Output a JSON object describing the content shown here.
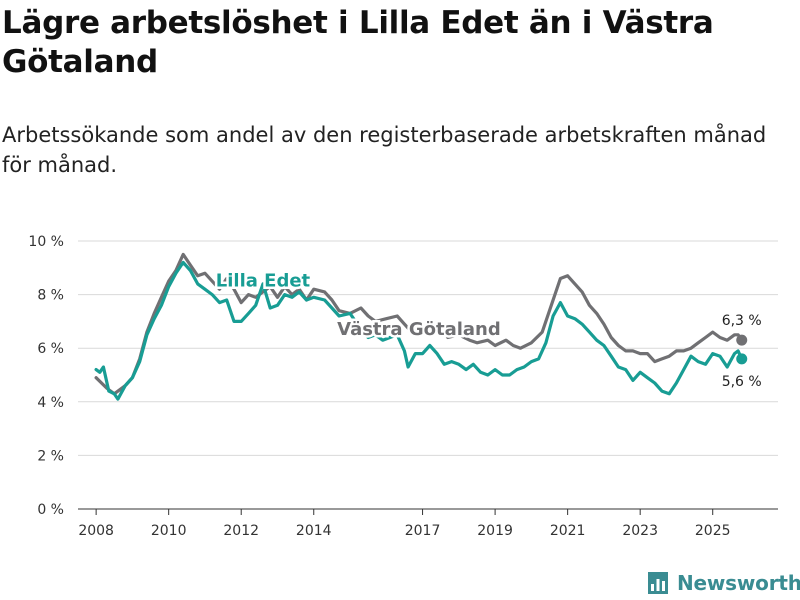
{
  "title": "Lägre arbetslöshet i Lilla Edet än i Västra Götaland",
  "subtitle": "Arbetssökande som andel av den registerbaserade arbetskraften månad för månad.",
  "brand": {
    "name": "Newsworthy",
    "icon": "newsworthy-logo-icon",
    "color": "#3a8c92"
  },
  "chart_data": {
    "type": "line",
    "xlim": [
      2007.5,
      2026.8
    ],
    "ylim": [
      0,
      10
    ],
    "x_ticks": [
      {
        "value": 2008,
        "label": "2008"
      },
      {
        "value": 2010,
        "label": "2010"
      },
      {
        "value": 2012,
        "label": "2012"
      },
      {
        "value": 2014,
        "label": "2014"
      },
      {
        "value": 2017,
        "label": "2017"
      },
      {
        "value": 2019,
        "label": "2019"
      },
      {
        "value": 2021,
        "label": "2021"
      },
      {
        "value": 2023,
        "label": "2023"
      },
      {
        "value": 2025,
        "label": "2025"
      }
    ],
    "y_ticks": [
      {
        "value": 0,
        "label": "0 %"
      },
      {
        "value": 2,
        "label": "2 %"
      },
      {
        "value": 4,
        "label": "4 %"
      },
      {
        "value": 6,
        "label": "6 %"
      },
      {
        "value": 8,
        "label": "8 %"
      },
      {
        "value": 10,
        "label": "10 %"
      }
    ],
    "grid": true,
    "series": [
      {
        "name": "Västra Götaland",
        "color": "#707073",
        "label": "Västra Götaland",
        "label_at": [
          2016.9,
          6.5
        ],
        "end_label": "6,3 %",
        "points": [
          [
            2008.0,
            4.9
          ],
          [
            2008.3,
            4.5
          ],
          [
            2008.5,
            4.3
          ],
          [
            2008.8,
            4.6
          ],
          [
            2009.0,
            4.9
          ],
          [
            2009.2,
            5.6
          ],
          [
            2009.4,
            6.6
          ],
          [
            2009.6,
            7.3
          ],
          [
            2009.8,
            7.9
          ],
          [
            2010.0,
            8.5
          ],
          [
            2010.2,
            8.9
          ],
          [
            2010.4,
            9.5
          ],
          [
            2010.6,
            9.1
          ],
          [
            2010.8,
            8.7
          ],
          [
            2011.0,
            8.8
          ],
          [
            2011.2,
            8.5
          ],
          [
            2011.4,
            8.2
          ],
          [
            2011.6,
            8.6
          ],
          [
            2011.8,
            8.2
          ],
          [
            2012.0,
            7.7
          ],
          [
            2012.2,
            8.0
          ],
          [
            2012.4,
            7.9
          ],
          [
            2012.6,
            8.1
          ],
          [
            2012.8,
            8.3
          ],
          [
            2013.0,
            7.9
          ],
          [
            2013.2,
            8.3
          ],
          [
            2013.4,
            8.0
          ],
          [
            2013.6,
            8.2
          ],
          [
            2013.8,
            7.8
          ],
          [
            2014.0,
            8.2
          ],
          [
            2014.3,
            8.1
          ],
          [
            2014.5,
            7.8
          ],
          [
            2014.7,
            7.4
          ],
          [
            2015.0,
            7.3
          ],
          [
            2015.3,
            7.5
          ],
          [
            2015.5,
            7.2
          ],
          [
            2015.7,
            7.0
          ],
          [
            2016.0,
            7.1
          ],
          [
            2016.3,
            7.2
          ],
          [
            2016.5,
            6.9
          ],
          [
            2016.7,
            6.6
          ],
          [
            2016.9,
            6.7
          ],
          [
            2017.1,
            6.8
          ],
          [
            2017.3,
            6.9
          ],
          [
            2017.5,
            6.7
          ],
          [
            2017.7,
            6.4
          ],
          [
            2018.0,
            6.5
          ],
          [
            2018.3,
            6.3
          ],
          [
            2018.5,
            6.2
          ],
          [
            2018.8,
            6.3
          ],
          [
            2019.0,
            6.1
          ],
          [
            2019.3,
            6.3
          ],
          [
            2019.5,
            6.1
          ],
          [
            2019.7,
            6.0
          ],
          [
            2020.0,
            6.2
          ],
          [
            2020.3,
            6.6
          ],
          [
            2020.6,
            7.8
          ],
          [
            2020.8,
            8.6
          ],
          [
            2021.0,
            8.7
          ],
          [
            2021.2,
            8.4
          ],
          [
            2021.4,
            8.1
          ],
          [
            2021.6,
            7.6
          ],
          [
            2021.8,
            7.3
          ],
          [
            2022.0,
            6.9
          ],
          [
            2022.2,
            6.4
          ],
          [
            2022.4,
            6.1
          ],
          [
            2022.6,
            5.9
          ],
          [
            2022.8,
            5.9
          ],
          [
            2023.0,
            5.8
          ],
          [
            2023.2,
            5.8
          ],
          [
            2023.4,
            5.5
          ],
          [
            2023.6,
            5.6
          ],
          [
            2023.8,
            5.7
          ],
          [
            2024.0,
            5.9
          ],
          [
            2024.2,
            5.9
          ],
          [
            2024.4,
            6.0
          ],
          [
            2024.6,
            6.2
          ],
          [
            2024.8,
            6.4
          ],
          [
            2025.0,
            6.6
          ],
          [
            2025.2,
            6.4
          ],
          [
            2025.4,
            6.3
          ],
          [
            2025.6,
            6.5
          ],
          [
            2025.7,
            6.5
          ],
          [
            2025.8,
            6.3
          ]
        ]
      },
      {
        "name": "Lilla Edet",
        "color": "#189d94",
        "label": "Lilla Edet",
        "label_at": [
          2012.6,
          8.3
        ],
        "end_label": "5,6 %",
        "points": [
          [
            2008.0,
            5.2
          ],
          [
            2008.1,
            5.1
          ],
          [
            2008.2,
            5.3
          ],
          [
            2008.35,
            4.4
          ],
          [
            2008.5,
            4.3
          ],
          [
            2008.6,
            4.1
          ],
          [
            2008.8,
            4.6
          ],
          [
            2009.0,
            4.9
          ],
          [
            2009.2,
            5.5
          ],
          [
            2009.4,
            6.5
          ],
          [
            2009.6,
            7.1
          ],
          [
            2009.8,
            7.6
          ],
          [
            2010.0,
            8.3
          ],
          [
            2010.2,
            8.8
          ],
          [
            2010.4,
            9.2
          ],
          [
            2010.6,
            8.9
          ],
          [
            2010.8,
            8.4
          ],
          [
            2011.0,
            8.2
          ],
          [
            2011.2,
            8.0
          ],
          [
            2011.4,
            7.7
          ],
          [
            2011.6,
            7.8
          ],
          [
            2011.8,
            7.0
          ],
          [
            2012.0,
            7.0
          ],
          [
            2012.2,
            7.3
          ],
          [
            2012.4,
            7.6
          ],
          [
            2012.6,
            8.4
          ],
          [
            2012.8,
            7.5
          ],
          [
            2013.0,
            7.6
          ],
          [
            2013.2,
            8.0
          ],
          [
            2013.4,
            7.9
          ],
          [
            2013.6,
            8.1
          ],
          [
            2013.8,
            7.8
          ],
          [
            2014.0,
            7.9
          ],
          [
            2014.3,
            7.8
          ],
          [
            2014.5,
            7.5
          ],
          [
            2014.7,
            7.2
          ],
          [
            2015.0,
            7.3
          ],
          [
            2015.3,
            6.7
          ],
          [
            2015.5,
            6.4
          ],
          [
            2015.7,
            6.5
          ],
          [
            2015.9,
            6.3
          ],
          [
            2016.1,
            6.4
          ],
          [
            2016.3,
            6.5
          ],
          [
            2016.5,
            5.9
          ],
          [
            2016.6,
            5.3
          ],
          [
            2016.8,
            5.8
          ],
          [
            2017.0,
            5.8
          ],
          [
            2017.2,
            6.1
          ],
          [
            2017.4,
            5.8
          ],
          [
            2017.6,
            5.4
          ],
          [
            2017.8,
            5.5
          ],
          [
            2018.0,
            5.4
          ],
          [
            2018.2,
            5.2
          ],
          [
            2018.4,
            5.4
          ],
          [
            2018.6,
            5.1
          ],
          [
            2018.8,
            5.0
          ],
          [
            2019.0,
            5.2
          ],
          [
            2019.2,
            5.0
          ],
          [
            2019.4,
            5.0
          ],
          [
            2019.6,
            5.2
          ],
          [
            2019.8,
            5.3
          ],
          [
            2020.0,
            5.5
          ],
          [
            2020.2,
            5.6
          ],
          [
            2020.4,
            6.2
          ],
          [
            2020.6,
            7.2
          ],
          [
            2020.8,
            7.7
          ],
          [
            2021.0,
            7.2
          ],
          [
            2021.2,
            7.1
          ],
          [
            2021.4,
            6.9
          ],
          [
            2021.6,
            6.6
          ],
          [
            2021.8,
            6.3
          ],
          [
            2022.0,
            6.1
          ],
          [
            2022.2,
            5.7
          ],
          [
            2022.4,
            5.3
          ],
          [
            2022.6,
            5.2
          ],
          [
            2022.8,
            4.8
          ],
          [
            2023.0,
            5.1
          ],
          [
            2023.2,
            4.9
          ],
          [
            2023.4,
            4.7
          ],
          [
            2023.6,
            4.4
          ],
          [
            2023.8,
            4.3
          ],
          [
            2024.0,
            4.7
          ],
          [
            2024.2,
            5.2
          ],
          [
            2024.4,
            5.7
          ],
          [
            2024.6,
            5.5
          ],
          [
            2024.8,
            5.4
          ],
          [
            2025.0,
            5.8
          ],
          [
            2025.2,
            5.7
          ],
          [
            2025.4,
            5.3
          ],
          [
            2025.6,
            5.8
          ],
          [
            2025.7,
            5.9
          ],
          [
            2025.8,
            5.6
          ]
        ]
      }
    ]
  }
}
